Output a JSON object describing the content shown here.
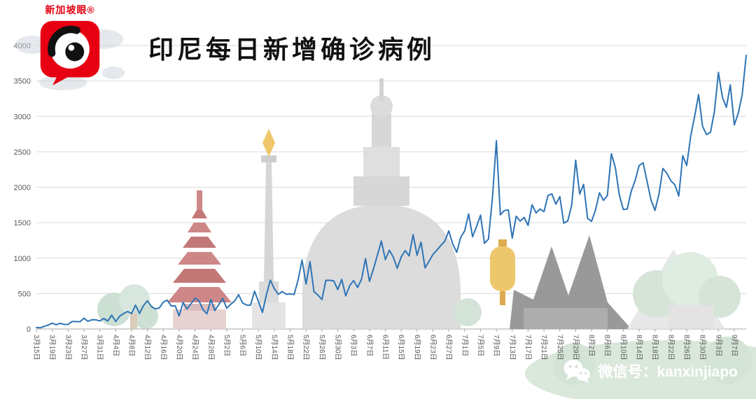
{
  "logo": {
    "brand": "新加坡眼®"
  },
  "header": {
    "title": "印尼每日新增确诊病例"
  },
  "footer": {
    "wechat_label": "微信号：kanxinjiapo"
  },
  "chart_data": {
    "type": "line",
    "title": "印尼每日新增确诊病例",
    "series_name": "每日新增确诊病例",
    "line_color": "#2E74B5",
    "grid_color": "#D9D9D9",
    "axis_color": "#A6A6A6",
    "tick_label_color": "#595959",
    "ylim": [
      0,
      4000
    ],
    "yticks": [
      0,
      500,
      1000,
      1500,
      2000,
      2500,
      3000,
      3500,
      4000
    ],
    "x_start_date": "3月15日",
    "x_end_date": "9月10日",
    "x_label_step": 4,
    "x_tick_labels": [
      "3月15日",
      "3月19日",
      "3月23日",
      "3月27日",
      "3月31日",
      "4月4日",
      "4月8日",
      "4月12日",
      "4月16日",
      "4月20日",
      "4月24日",
      "4月28日",
      "5月2日",
      "5月6日",
      "5月10日",
      "5月14日",
      "5月18日",
      "5月22日",
      "5月26日",
      "5月30日",
      "6月3日",
      "6月7日",
      "6月11日",
      "6月15日",
      "6月19日",
      "6月23日",
      "6月27日",
      "7月1日",
      "7月5日",
      "7月9日",
      "7月13日",
      "7月17日",
      "7月21日",
      "7月25日",
      "7月29日",
      "8月2日",
      "8月6日",
      "8月10日",
      "8月14日",
      "8月18日",
      "8月22日",
      "8月26日",
      "8月30日",
      "9月3日",
      "9月7日"
    ],
    "values": [
      21,
      17,
      38,
      55,
      82,
      60,
      81,
      64,
      65,
      107,
      105,
      103,
      153,
      109,
      130,
      129,
      114,
      149,
      113,
      196,
      106,
      181,
      218,
      247,
      218,
      337,
      219,
      330,
      399,
      316,
      282,
      297,
      380,
      407,
      325,
      327,
      185,
      375,
      283,
      357,
      436,
      396,
      275,
      214,
      415,
      260,
      347,
      433,
      292,
      349,
      395,
      484,
      367,
      338,
      336,
      533,
      387,
      233,
      484,
      689,
      568,
      490,
      529,
      489,
      496,
      486,
      693,
      973,
      634,
      949,
      526,
      479,
      415,
      686,
      687,
      678,
      557,
      700,
      467,
      609,
      684,
      585,
      703,
      993,
      672,
      847,
      1043,
      1241,
      979,
      1111,
      1014,
      857,
      1017,
      1106,
      1031,
      1331,
      1041,
      1226,
      862,
      954,
      1051,
      1113,
      1178,
      1240,
      1385,
      1198,
      1082,
      1293,
      1385,
      1624,
      1301,
      1447,
      1607,
      1209,
      1268,
      1853,
      2657,
      1611,
      1671,
      1681,
      1282,
      1591,
      1522,
      1574,
      1462,
      1752,
      1639,
      1693,
      1655,
      1882,
      1906,
      1761,
      1868,
      1492,
      1525,
      1748,
      2381,
      1904,
      2040,
      1560,
      1519,
      1679,
      1922,
      1815,
      1882,
      2473,
      2277,
      1893,
      1687,
      1693,
      1942,
      2098,
      2307,
      2345,
      2081,
      1821,
      1673,
      1902,
      2266,
      2197,
      2090,
      2037,
      1877,
      2447,
      2306,
      2719,
      3003,
      3308,
      2858,
      2743,
      2775,
      3075,
      3622,
      3269,
      3128,
      3444,
      2880,
      3046,
      3307,
      3861
    ]
  }
}
